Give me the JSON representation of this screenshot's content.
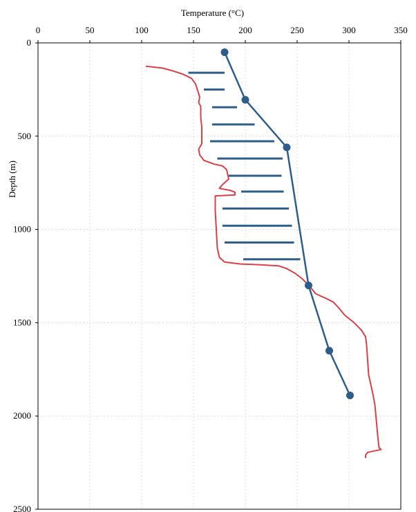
{
  "chart_data": {
    "type": "line",
    "title": "",
    "xlabel": "Temperature (°C)",
    "ylabel": "Depth (m)",
    "x_axis_position": "top",
    "y_axis_inverted": true,
    "xlim": [
      0,
      350
    ],
    "ylim": [
      0,
      2500
    ],
    "xticks": [
      0,
      50,
      100,
      150,
      200,
      250,
      300,
      350
    ],
    "yticks": [
      0,
      500,
      1000,
      1500,
      2000,
      2500
    ],
    "grid": true,
    "legend": "none",
    "colors": {
      "line": "#d9404a",
      "points": "#2f5d8a",
      "bars": "#2f5d8a",
      "grid": "#dddddd"
    },
    "series": [
      {
        "kind": "line",
        "points": [
          {
            "x": 104,
            "y": 125
          },
          {
            "x": 120,
            "y": 135
          },
          {
            "x": 130,
            "y": 150
          },
          {
            "x": 140,
            "y": 168
          },
          {
            "x": 148,
            "y": 190
          },
          {
            "x": 152,
            "y": 220
          },
          {
            "x": 154,
            "y": 255
          },
          {
            "x": 156,
            "y": 290
          },
          {
            "x": 155,
            "y": 320
          },
          {
            "x": 157,
            "y": 340
          },
          {
            "x": 157,
            "y": 400
          },
          {
            "x": 158,
            "y": 450
          },
          {
            "x": 158,
            "y": 500
          },
          {
            "x": 158,
            "y": 540
          },
          {
            "x": 155,
            "y": 570
          },
          {
            "x": 156,
            "y": 600
          },
          {
            "x": 160,
            "y": 630
          },
          {
            "x": 170,
            "y": 650
          },
          {
            "x": 178,
            "y": 660
          },
          {
            "x": 182,
            "y": 680
          },
          {
            "x": 184,
            "y": 730
          },
          {
            "x": 178,
            "y": 760
          },
          {
            "x": 175,
            "y": 780
          },
          {
            "x": 185,
            "y": 790
          },
          {
            "x": 190,
            "y": 800
          },
          {
            "x": 190,
            "y": 815
          },
          {
            "x": 171,
            "y": 820
          },
          {
            "x": 171,
            "y": 900
          },
          {
            "x": 172,
            "y": 1000
          },
          {
            "x": 173,
            "y": 1100
          },
          {
            "x": 175,
            "y": 1150
          },
          {
            "x": 180,
            "y": 1175
          },
          {
            "x": 195,
            "y": 1185
          },
          {
            "x": 215,
            "y": 1190
          },
          {
            "x": 232,
            "y": 1195
          },
          {
            "x": 240,
            "y": 1210
          },
          {
            "x": 248,
            "y": 1235
          },
          {
            "x": 255,
            "y": 1265
          },
          {
            "x": 262,
            "y": 1305
          },
          {
            "x": 268,
            "y": 1345
          },
          {
            "x": 278,
            "y": 1370
          },
          {
            "x": 285,
            "y": 1390
          },
          {
            "x": 290,
            "y": 1420
          },
          {
            "x": 296,
            "y": 1460
          },
          {
            "x": 305,
            "y": 1500
          },
          {
            "x": 312,
            "y": 1540
          },
          {
            "x": 316,
            "y": 1575
          },
          {
            "x": 317,
            "y": 1620
          },
          {
            "x": 318,
            "y": 1700
          },
          {
            "x": 319,
            "y": 1780
          },
          {
            "x": 321,
            "y": 1830
          },
          {
            "x": 323,
            "y": 1880
          },
          {
            "x": 325,
            "y": 1940
          },
          {
            "x": 326,
            "y": 2000
          },
          {
            "x": 327,
            "y": 2060
          },
          {
            "x": 328,
            "y": 2120
          },
          {
            "x": 329,
            "y": 2170
          },
          {
            "x": 331,
            "y": 2180
          },
          {
            "x": 318,
            "y": 2195
          },
          {
            "x": 316,
            "y": 2210
          },
          {
            "x": 316,
            "y": 2225
          }
        ]
      },
      {
        "kind": "line-markers",
        "points": [
          {
            "x": 180,
            "y": 50
          },
          {
            "x": 200,
            "y": 305
          },
          {
            "x": 240,
            "y": 560
          },
          {
            "x": 261,
            "y": 1300
          },
          {
            "x": 281,
            "y": 1650
          },
          {
            "x": 301,
            "y": 1890
          }
        ]
      },
      {
        "kind": "range-bars",
        "bars": [
          {
            "y": 160,
            "x0": 145,
            "x1": 180
          },
          {
            "y": 250,
            "x0": 160,
            "x1": 180
          },
          {
            "y": 345,
            "x0": 168,
            "x1": 192
          },
          {
            "y": 437,
            "x0": 168,
            "x1": 209
          },
          {
            "y": 527,
            "x0": 166,
            "x1": 228
          },
          {
            "y": 620,
            "x0": 173,
            "x1": 236
          },
          {
            "y": 712,
            "x0": 184,
            "x1": 235
          },
          {
            "y": 797,
            "x0": 196,
            "x1": 237
          },
          {
            "y": 888,
            "x0": 178,
            "x1": 242
          },
          {
            "y": 980,
            "x0": 178,
            "x1": 245
          },
          {
            "y": 1070,
            "x0": 180,
            "x1": 247
          },
          {
            "y": 1160,
            "x0": 198,
            "x1": 253
          }
        ]
      }
    ]
  }
}
